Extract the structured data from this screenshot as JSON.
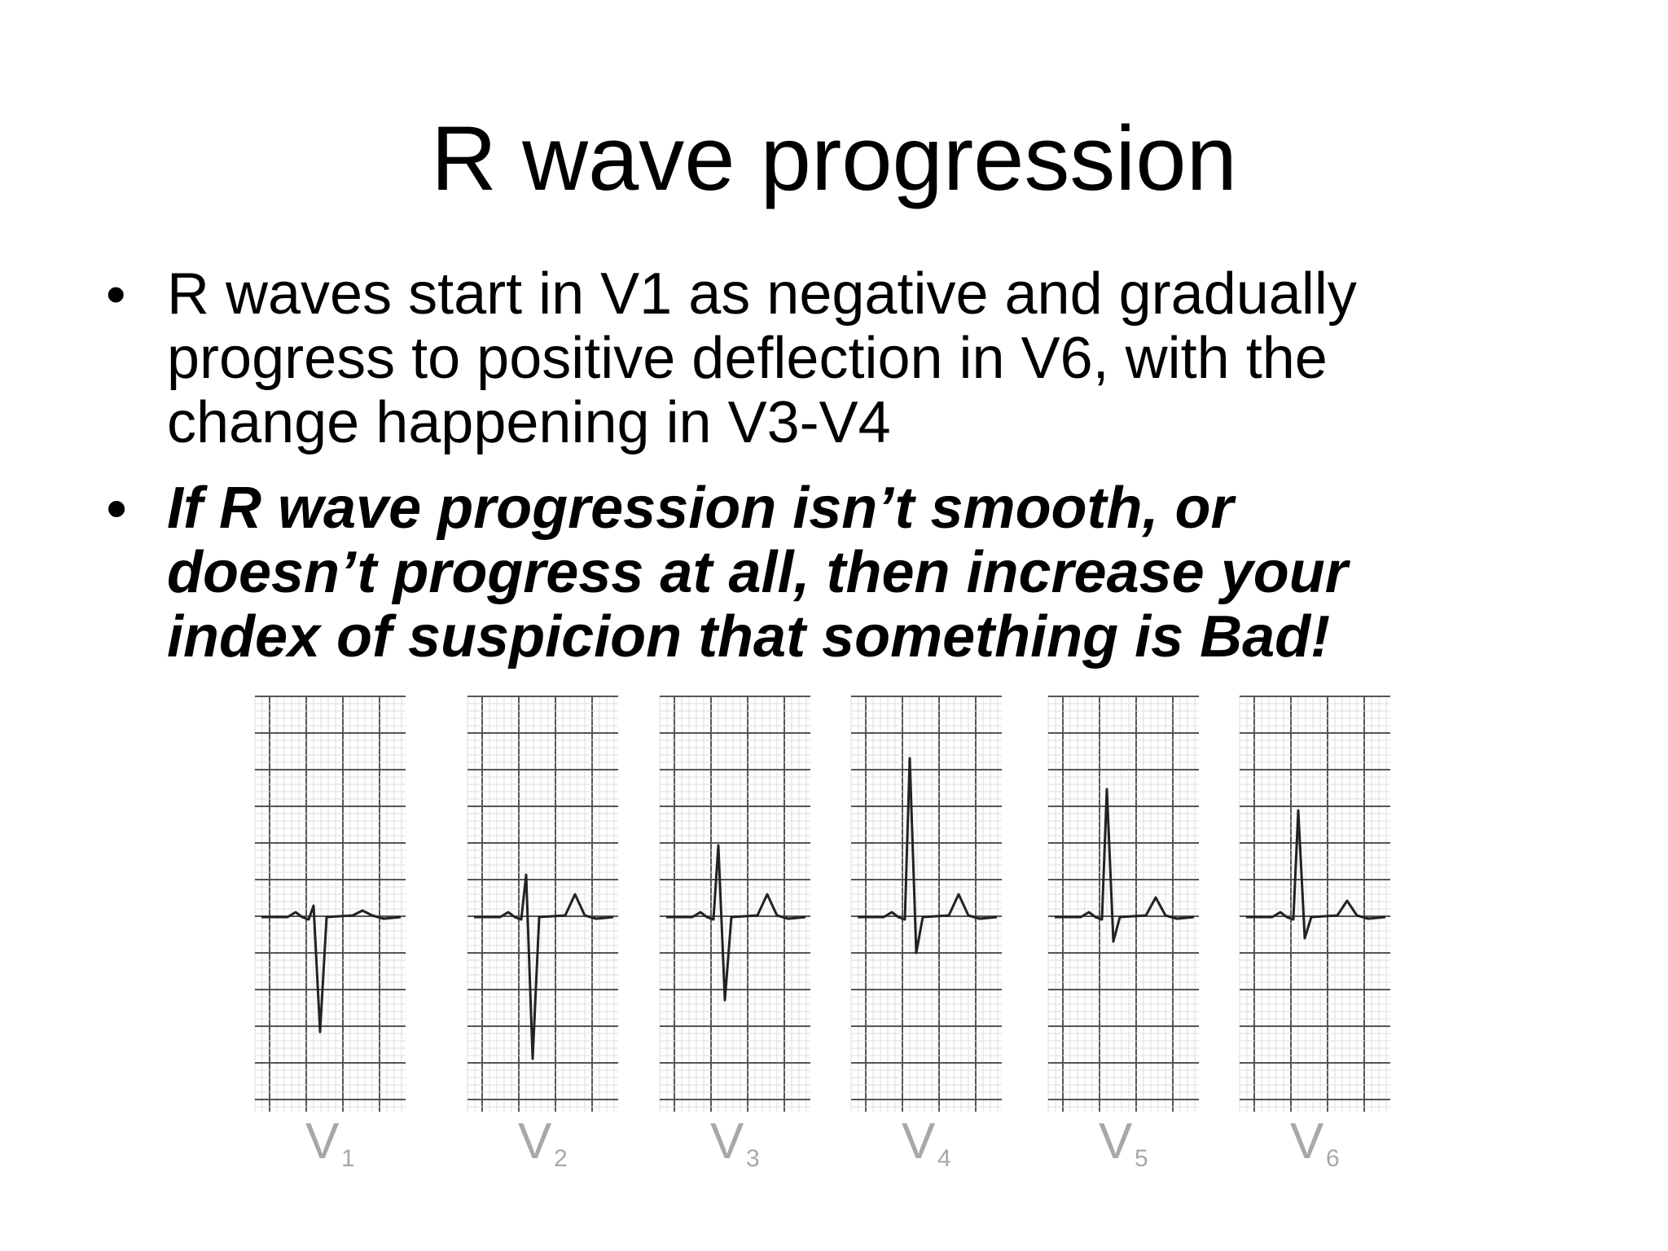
{
  "title": "R wave progression",
  "bullets": [
    {
      "style": "normal",
      "lines": [
        "R waves start in V1 as negative and gradually",
        "progress to positive deflection in V6, with the",
        "change happening in V3-V4"
      ]
    },
    {
      "style": "bold-italic",
      "lines": [
        "If R wave progression isn’t smooth, or",
        "doesn’t progress at all, then increase your",
        "index of suspicion that something is Bad!"
      ]
    }
  ],
  "leads": [
    {
      "name": "V",
      "sub": "1"
    },
    {
      "name": "V",
      "sub": "2"
    },
    {
      "name": "V",
      "sub": "3"
    },
    {
      "name": "V",
      "sub": "4"
    },
    {
      "name": "V",
      "sub": "5"
    },
    {
      "name": "V",
      "sub": "6"
    }
  ]
}
